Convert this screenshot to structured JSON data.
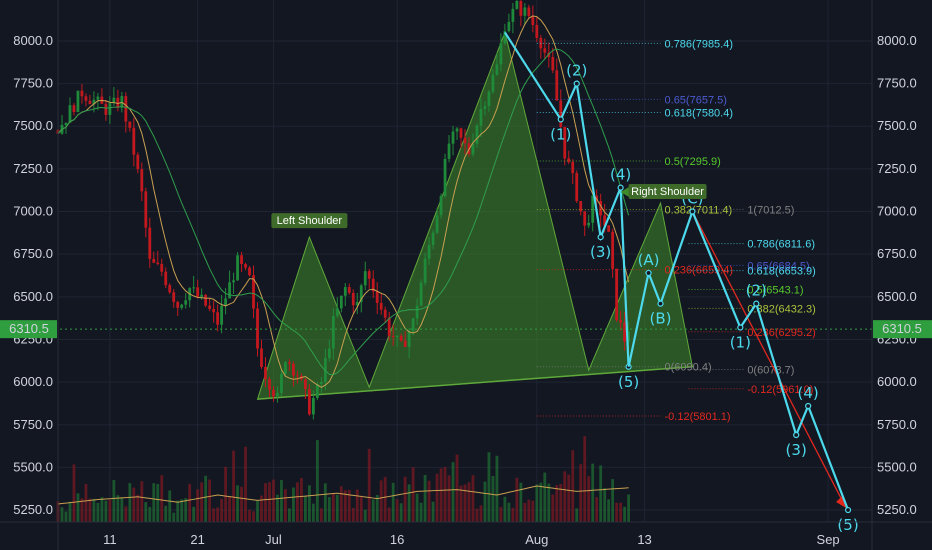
{
  "colors": {
    "background": "#131722",
    "grid": "#1f2433",
    "candle_up": "#1f8a3a",
    "candle_down": "#c3191e",
    "pattern_fill": "#3f8a2a",
    "wave": "#4dd9ec",
    "current_price": "#2e9e3f",
    "red_projection": "#e0281f"
  },
  "chart_data": {
    "type": "candlestick",
    "title": "",
    "ylim": [
      5180,
      8240
    ],
    "y_ticks": [
      "8000.0",
      "7750.0",
      "7500.0",
      "7250.0",
      "7000.0",
      "6750.0",
      "6500.0",
      "6250.0",
      "6000.0",
      "5750.0",
      "5500.0",
      "5250.0"
    ],
    "x_ticks": [
      "11",
      "21",
      "Jul",
      "16",
      "Aug",
      "13",
      "Sep"
    ],
    "current_price": "6310.5",
    "price_path": [
      [
        0,
        7480
      ],
      [
        6,
        7700
      ],
      [
        12,
        7600
      ],
      [
        16,
        7650
      ],
      [
        19,
        7350
      ],
      [
        21,
        7100
      ],
      [
        23,
        6700
      ],
      [
        26,
        6650
      ],
      [
        30,
        6450
      ],
      [
        33,
        6550
      ],
      [
        37,
        6450
      ],
      [
        40,
        6350
      ],
      [
        42,
        6500
      ],
      [
        45,
        6700
      ],
      [
        48,
        6600
      ],
      [
        50,
        6200
      ],
      [
        52,
        6050
      ],
      [
        55,
        5900
      ],
      [
        57,
        6150
      ],
      [
        60,
        6050
      ],
      [
        63,
        5850
      ],
      [
        66,
        6000
      ],
      [
        69,
        6350
      ],
      [
        72,
        6550
      ],
      [
        75,
        6450
      ],
      [
        77,
        6650
      ],
      [
        80,
        6500
      ],
      [
        83,
        6300
      ],
      [
        86,
        6200
      ],
      [
        89,
        6350
      ],
      [
        92,
        6700
      ],
      [
        95,
        7000
      ],
      [
        98,
        7400
      ],
      [
        100,
        7450
      ],
      [
        103,
        7350
      ],
      [
        106,
        7600
      ],
      [
        110,
        7850
      ],
      [
        112,
        8100
      ],
      [
        115,
        8200
      ],
      [
        118,
        8150
      ],
      [
        121,
        8000
      ],
      [
        124,
        7800
      ],
      [
        127,
        7350
      ],
      [
        130,
        7100
      ],
      [
        132,
        6900
      ],
      [
        134,
        7050
      ],
      [
        136,
        7000
      ],
      [
        138,
        6850
      ],
      [
        140,
        6400
      ],
      [
        142,
        6250
      ],
      [
        143,
        6320
      ]
    ],
    "volume_path": [
      [
        0,
        20
      ],
      [
        10,
        25
      ],
      [
        20,
        28
      ],
      [
        30,
        22
      ],
      [
        40,
        30
      ],
      [
        50,
        24
      ],
      [
        60,
        28
      ],
      [
        70,
        32
      ],
      [
        80,
        26
      ],
      [
        90,
        34
      ],
      [
        100,
        36
      ],
      [
        110,
        30
      ],
      [
        120,
        40
      ],
      [
        130,
        34
      ],
      [
        143,
        38
      ]
    ],
    "head_and_shoulders": {
      "left_shoulder_label": "Left Shoulder",
      "right_shoulder_label": "Right Shoulder",
      "outline": [
        [
          50,
          5900
        ],
        [
          63,
          6850
        ],
        [
          78,
          5970
        ],
        [
          112,
          8050
        ],
        [
          133,
          6070
        ],
        [
          151,
          7050
        ],
        [
          159,
          6090
        ]
      ]
    },
    "elliott_waves": [
      {
        "points": [
          [
            112,
            8050
          ],
          [
            126,
            7540
          ],
          [
            130,
            7750
          ],
          [
            136,
            6850
          ],
          [
            141,
            7140
          ],
          [
            143,
            6090
          ]
        ],
        "labels": [
          "(1)",
          "(2)",
          "(3)",
          "(4)",
          "(5)"
        ]
      },
      {
        "points": [
          [
            143,
            6090
          ],
          [
            148,
            6640
          ],
          [
            151,
            6460
          ],
          [
            159,
            7000
          ],
          [
            171,
            6320
          ],
          [
            175,
            6460
          ],
          [
            185,
            5690
          ],
          [
            188,
            5860
          ],
          [
            198,
            5250
          ]
        ],
        "labels": [
          "(A)",
          "(B)",
          "(C)",
          "(1)",
          "(2)",
          "(3)",
          "(4)",
          "(5)"
        ]
      }
    ],
    "fib_levels_upper": [
      {
        "label": "0.786(7985.4)",
        "value": 7985.4,
        "color": "#4dd9ec"
      },
      {
        "label": "0.65(7657.5)",
        "value": 7657.5,
        "color": "#4b5ad0"
      },
      {
        "label": "0.618(7580.4)",
        "value": 7580.4,
        "color": "#4dd9ec"
      },
      {
        "label": "0.5(7295.9)",
        "value": 7295.9,
        "color": "#56c92c"
      },
      {
        "label": "0.382(7011.4)",
        "value": 7011.4,
        "color": "#a9c23c"
      },
      {
        "label": "0.236(6659.4)",
        "value": 6659.4,
        "color": "#e0281f"
      },
      {
        "label": "0(6090.4)",
        "value": 6090.4,
        "color": "#808080"
      },
      {
        "label": "-0.12(5801.1)",
        "value": 5801.1,
        "color": "#e0281f"
      }
    ],
    "fib_levels_lower": [
      {
        "label": "1(7012.5)",
        "value": 7012.5,
        "color": "#808080"
      },
      {
        "label": "0.786(6811.6)",
        "value": 6811.6,
        "color": "#4dd9ec"
      },
      {
        "label": "0.65(6684.5)",
        "value": 6684.5,
        "color": "#4b5ad0"
      },
      {
        "label": "0.618(6653.9)",
        "value": 6653.9,
        "color": "#4dd9ec"
      },
      {
        "label": "0.5(6543.1)",
        "value": 6543.1,
        "color": "#56c92c"
      },
      {
        "label": "0.382(6432.3)",
        "value": 6432.3,
        "color": "#a9c23c"
      },
      {
        "label": "0.236(6295.2)",
        "value": 6295.2,
        "color": "#e0281f"
      },
      {
        "label": "0(6073.7)",
        "value": 6073.7,
        "color": "#808080"
      },
      {
        "label": "-0.12(5961.0)",
        "value": 5961.0,
        "color": "#e0281f"
      }
    ]
  }
}
